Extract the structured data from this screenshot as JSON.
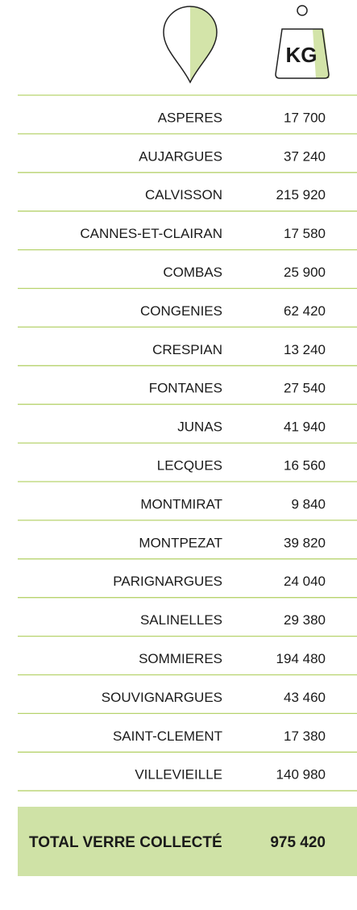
{
  "header": {
    "weight_label": "KG"
  },
  "table": {
    "rows": [
      [
        "ASPERES",
        "17 700"
      ],
      [
        "AUJARGUES",
        "37 240"
      ],
      [
        "CALVISSON",
        "215 920"
      ],
      [
        "CANNES-ET-CLAIRAN",
        "17 580"
      ],
      [
        "COMBAS",
        "25 900"
      ],
      [
        "CONGENIES",
        "62 420"
      ],
      [
        "CRESPIAN",
        "13 240"
      ],
      [
        "FONTANES",
        "27 540"
      ],
      [
        "JUNAS",
        "41 940"
      ],
      [
        "LECQUES",
        "16 560"
      ],
      [
        "MONTMIRAT",
        "9 840"
      ],
      [
        "MONTPEZAT",
        "39 820"
      ],
      [
        "PARIGNARGUES",
        "24 040"
      ],
      [
        "SALINELLES",
        "29 380"
      ],
      [
        "SOMMIERES",
        "194 480"
      ],
      [
        "SOUVIGNARGUES",
        "43 460"
      ],
      [
        "SAINT-CLEMENT",
        "17 380"
      ],
      [
        "VILLEVIEILLE",
        "140 980"
      ]
    ],
    "total": [
      "TOTAL VERRE COLLECTÉ",
      "975 420"
    ]
  }
}
